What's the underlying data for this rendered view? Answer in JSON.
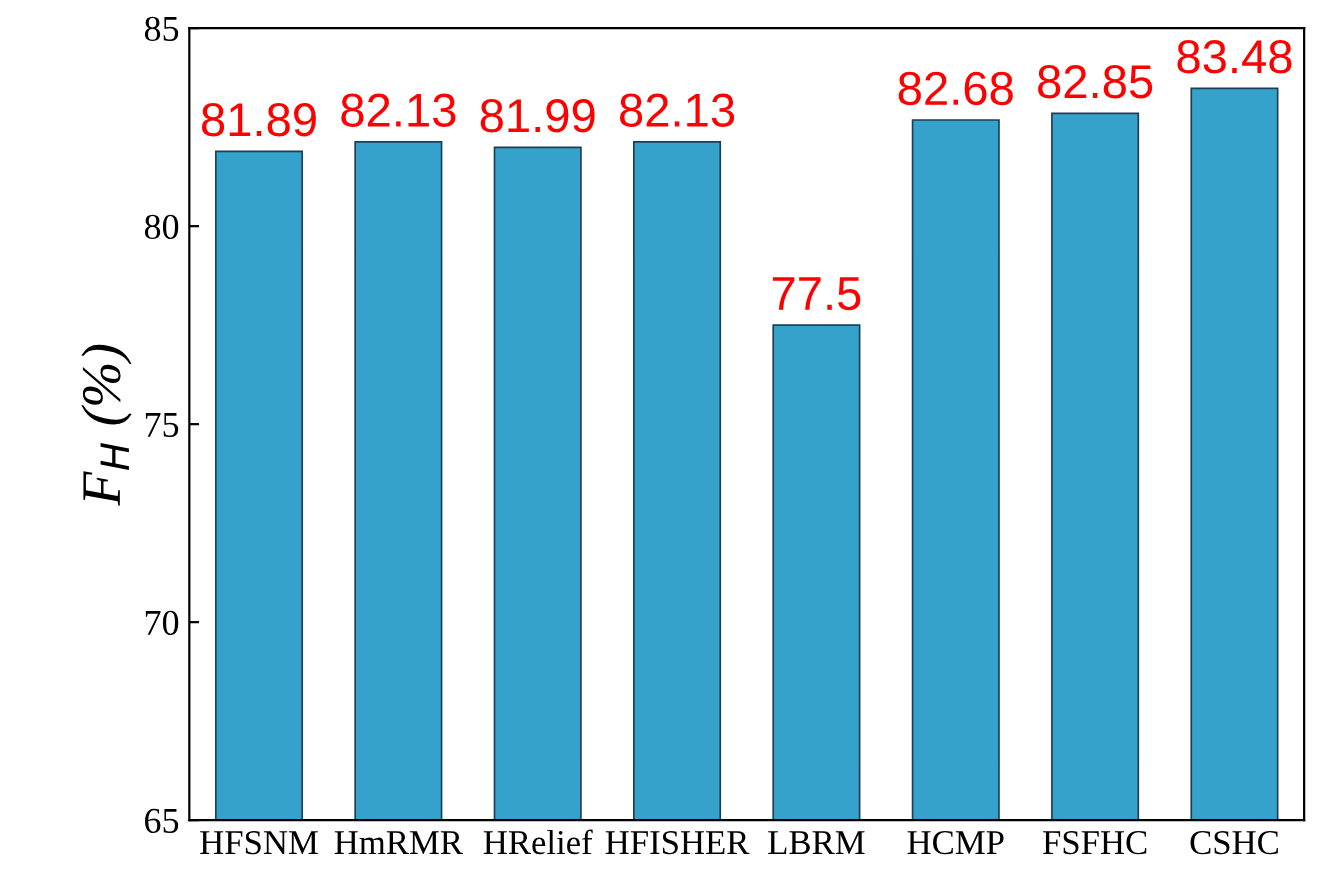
{
  "chart_data": {
    "type": "bar",
    "ylabel": "F$_{H}$ (%)",
    "categories": [
      "HFSNM",
      "HmRMR",
      "HRelief",
      "HFISHER",
      "LBRM",
      "HCMP",
      "FSFHC",
      "CSHC"
    ],
    "values": [
      81.89,
      82.13,
      81.99,
      82.13,
      77.5,
      82.68,
      82.85,
      83.48
    ],
    "color": "#35a2cb",
    "ylim": [
      65,
      85
    ],
    "yticks": [
      65,
      70,
      75,
      80,
      85
    ],
    "grid": false,
    "data_labels": true
  }
}
